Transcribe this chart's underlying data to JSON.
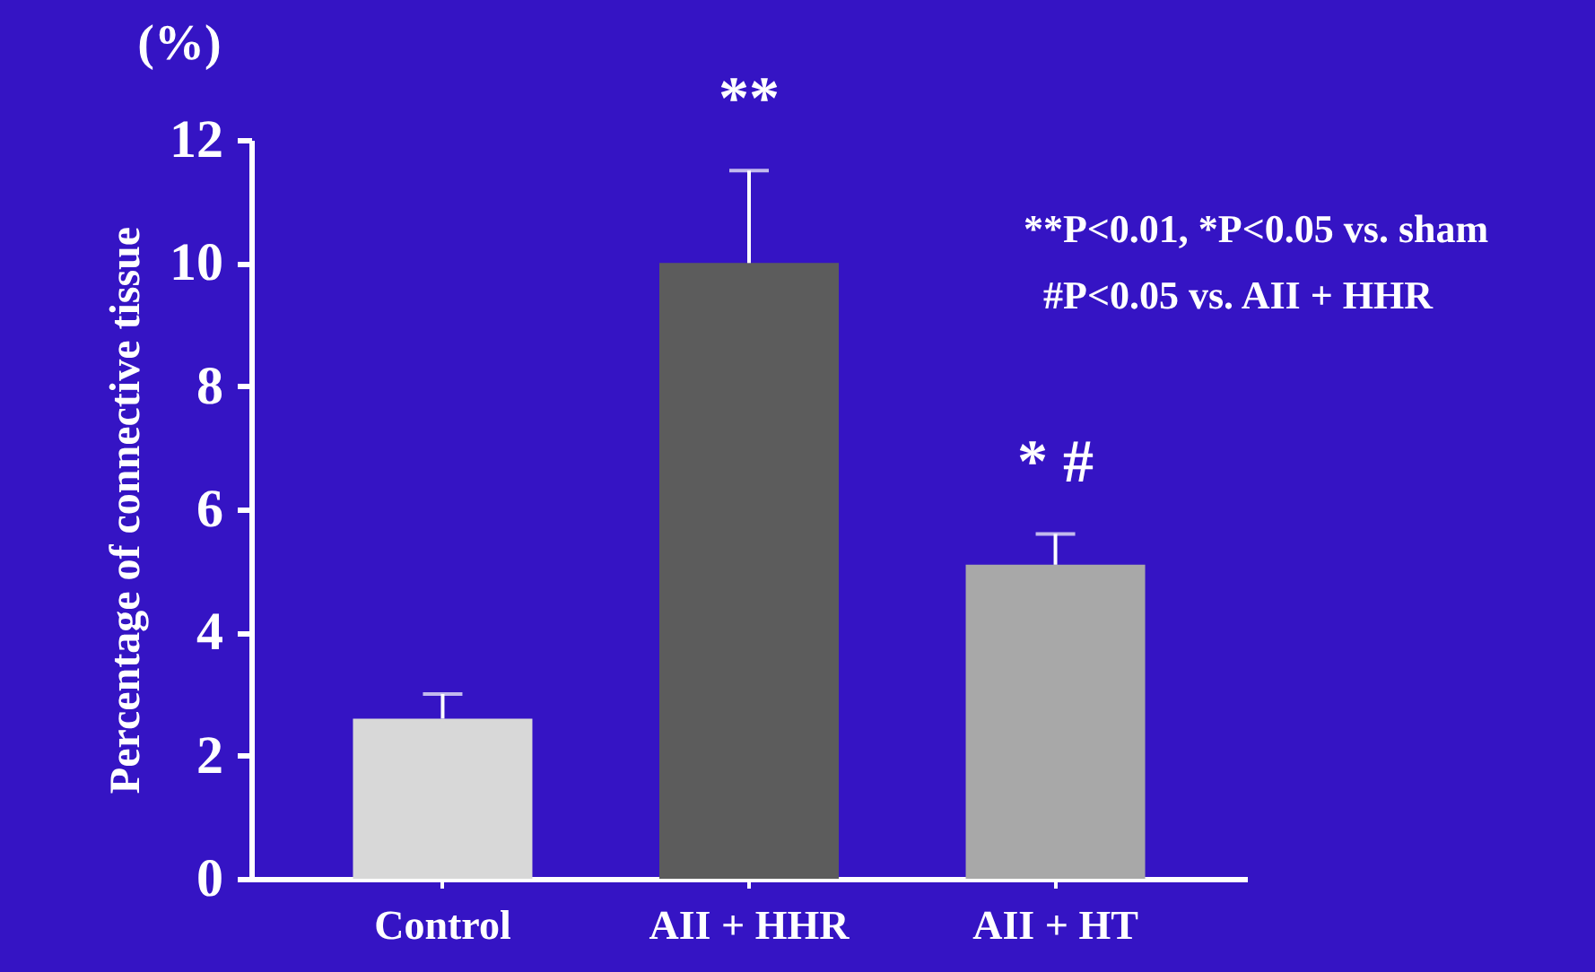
{
  "chart_data": {
    "type": "bar",
    "categories": [
      "Control",
      "AII + HHR",
      "AII + HT"
    ],
    "values": [
      2.6,
      10.0,
      5.1
    ],
    "errors": [
      0.4,
      1.5,
      0.5
    ],
    "colors": [
      "#d8d8d8",
      "#5c5c5c",
      "#a8a8a8"
    ],
    "ylabel": "Percentage of connective tissue",
    "ylim": [
      0,
      12
    ],
    "yticks": [
      0,
      2,
      4,
      6,
      8,
      10,
      12
    ],
    "grid": false,
    "annotations": [
      {
        "text": "**",
        "x": "AII + HHR",
        "y": 11.5
      },
      {
        "text": "* #",
        "x": "AII + HT",
        "y": 5.6
      },
      "(%)",
      "**P<0.01, *P<0.05 vs. sham",
      "#P<0.05 vs. AII + HHR"
    ]
  }
}
